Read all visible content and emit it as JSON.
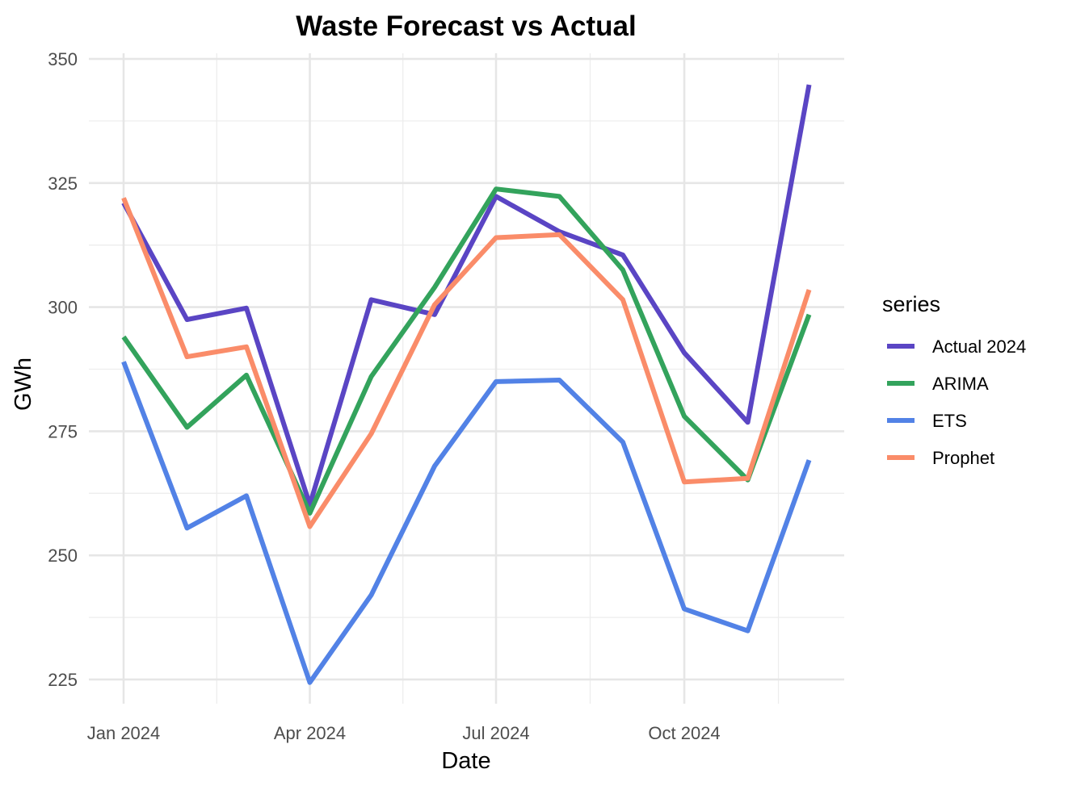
{
  "chart_data": {
    "type": "line",
    "title": "Waste Forecast vs Actual",
    "xlabel": "Date",
    "ylabel": "GWh",
    "x": [
      "2024-01",
      "2024-02",
      "2024-03",
      "2024-04",
      "2024-05",
      "2024-06",
      "2024-07",
      "2024-08",
      "2024-09",
      "2024-10",
      "2024-11",
      "2024-12"
    ],
    "x_ticks": [
      {
        "label": "Jan 2024",
        "month": "2024-01"
      },
      {
        "label": "Apr 2024",
        "month": "2024-04"
      },
      {
        "label": "Jul 2024",
        "month": "2024-07"
      },
      {
        "label": "Oct 2024",
        "month": "2024-10"
      }
    ],
    "ylim": [
      220,
      350
    ],
    "y_ticks": [
      225,
      250,
      275,
      300,
      325,
      350
    ],
    "grid": true,
    "legend": {
      "title": "series",
      "position": "right"
    },
    "series": [
      {
        "name": "Actual 2024",
        "color": "#5a45c4",
        "values": [
          321,
          297.5,
          299.8,
          260.2,
          301.5,
          298.5,
          322.3,
          315.2,
          310.5,
          290.8,
          276.8,
          344.8
        ]
      },
      {
        "name": "ARIMA",
        "color": "#33a35c",
        "values": [
          294,
          275.8,
          286.3,
          258.5,
          286,
          304,
          323.8,
          322.3,
          307.5,
          278,
          265.2,
          298.5
        ]
      },
      {
        "name": "ETS",
        "color": "#5282e6",
        "values": [
          289,
          255.5,
          262,
          224.4,
          242,
          268,
          285,
          285.3,
          272.8,
          239.2,
          234.8,
          269.2
        ]
      },
      {
        "name": "Prophet",
        "color": "#fa8c69",
        "values": [
          322,
          290,
          292,
          255.8,
          274.5,
          300.5,
          314,
          314.6,
          301.5,
          264.8,
          265.5,
          303.5
        ]
      }
    ]
  }
}
